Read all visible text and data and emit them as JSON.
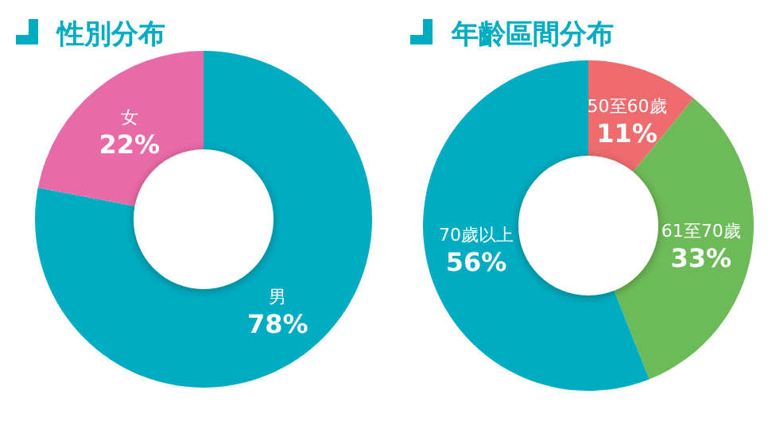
{
  "chart_data": [
    {
      "type": "donut",
      "title": "性別分布",
      "categories": [
        "男",
        "女"
      ],
      "values": [
        78,
        22
      ],
      "colors": [
        "#00acc1",
        "#e96aa9"
      ],
      "value_labels": [
        "78%",
        "22%"
      ]
    },
    {
      "type": "donut",
      "title": "年齡區間分布",
      "categories": [
        "50至60歲",
        "61至70歲",
        "70歲以上"
      ],
      "values": [
        11,
        33,
        56
      ],
      "colors": [
        "#ee6b6e",
        "#6dbb58",
        "#00acc1"
      ],
      "value_labels": [
        "11%",
        "33%",
        "56%"
      ]
    }
  ]
}
